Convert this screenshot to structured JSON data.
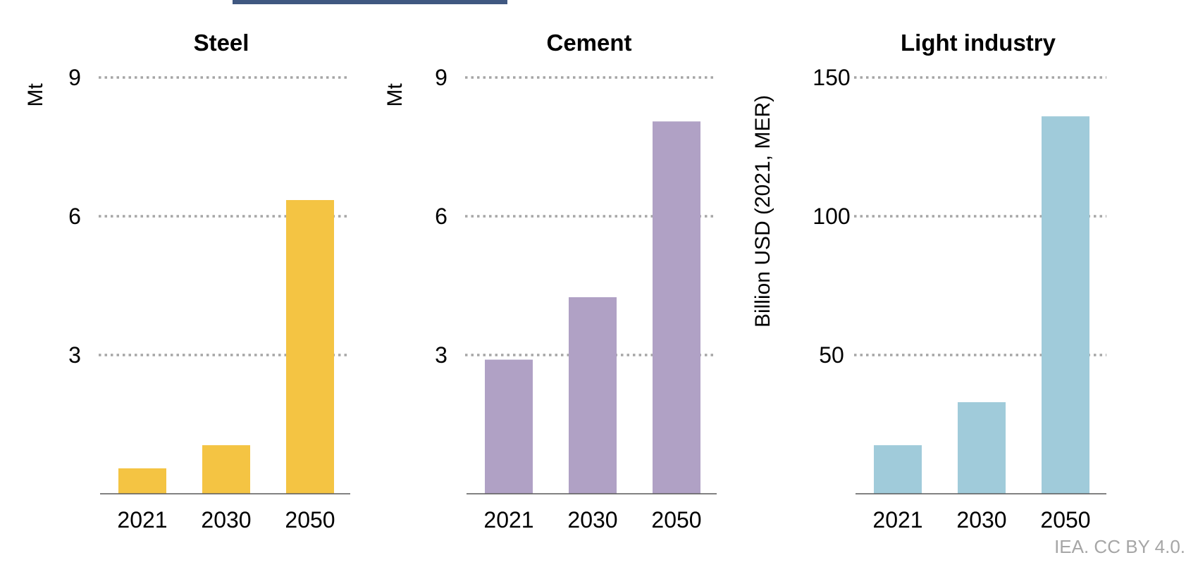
{
  "chart_data": [
    {
      "type": "bar",
      "title": "Steel",
      "ylabel": "Mt",
      "categories": [
        "2021",
        "2030",
        "2050"
      ],
      "values": [
        0.55,
        1.05,
        6.35
      ],
      "yticks": [
        "3",
        "6",
        "9"
      ],
      "ylim": [
        0,
        9
      ],
      "color": "#F4C443",
      "grid": true
    },
    {
      "type": "bar",
      "title": "Cement",
      "ylabel": "Mt",
      "categories": [
        "2021",
        "2030",
        "2050"
      ],
      "values": [
        2.9,
        4.25,
        8.05
      ],
      "yticks": [
        "3",
        "6",
        "9"
      ],
      "ylim": [
        0,
        9
      ],
      "color": "#B0A1C5",
      "grid": true
    },
    {
      "type": "bar",
      "title": "Light industry",
      "ylabel": "Billion USD (2021, MER)",
      "categories": [
        "2021",
        "2030",
        "2050"
      ],
      "values": [
        17.5,
        33,
        136
      ],
      "yticks": [
        "50",
        "100",
        "150"
      ],
      "ylim": [
        0,
        150
      ],
      "color": "#A0CBDA",
      "grid": true
    }
  ],
  "credit": "IEA. CC BY 4.0."
}
